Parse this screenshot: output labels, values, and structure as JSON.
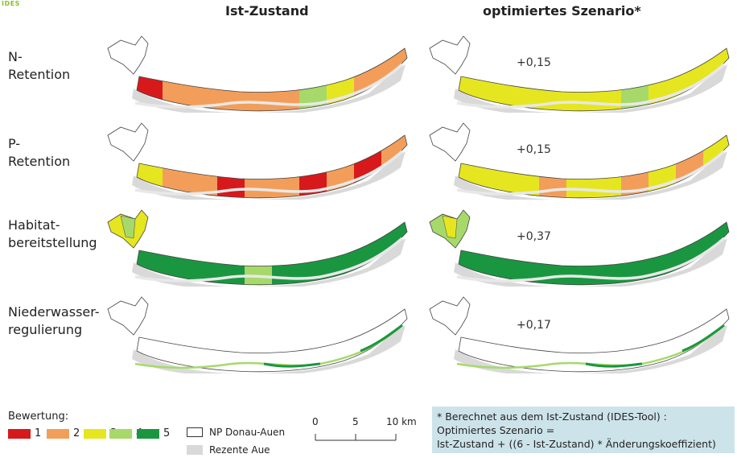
{
  "logo": "IDES",
  "columns": {
    "left": "Ist-Zustand",
    "right": "optimiertes Szenario*"
  },
  "rows": [
    {
      "label_line1": "N-",
      "label_line2": "Retention",
      "delta": "+0,15"
    },
    {
      "label_line1": "P-",
      "label_line2": "Retention",
      "delta": "+0,15"
    },
    {
      "label_line1": "Habitat-",
      "label_line2": "bereitstellung",
      "delta": "+0,37"
    },
    {
      "label_line1": "Niederwasser-",
      "label_line2": "regulierung",
      "delta": "+0,17"
    }
  ],
  "legend": {
    "title": "Bewertung:",
    "items": [
      {
        "value": "1",
        "color": "#d7191c"
      },
      {
        "value": "2",
        "color": "#f29e5a"
      },
      {
        "value": "3",
        "color": "#e6e620"
      },
      {
        "value": "4",
        "color": "#a6d96a"
      },
      {
        "value": "5",
        "color": "#1a9641"
      }
    ],
    "np_label": "NP Donau-Auen",
    "aue_label": "Rezente Aue"
  },
  "scale": {
    "t0": "0",
    "t1": "5",
    "t2": "10 km"
  },
  "note": {
    "line1": "* Berechnet aus dem Ist-Zustand (IDES-Tool) :",
    "line2": "Optimiertes Szenario =",
    "line3": "Ist-Zustand + ((6 - Ist-Zustand) * Änderungskoeffizient)"
  }
}
